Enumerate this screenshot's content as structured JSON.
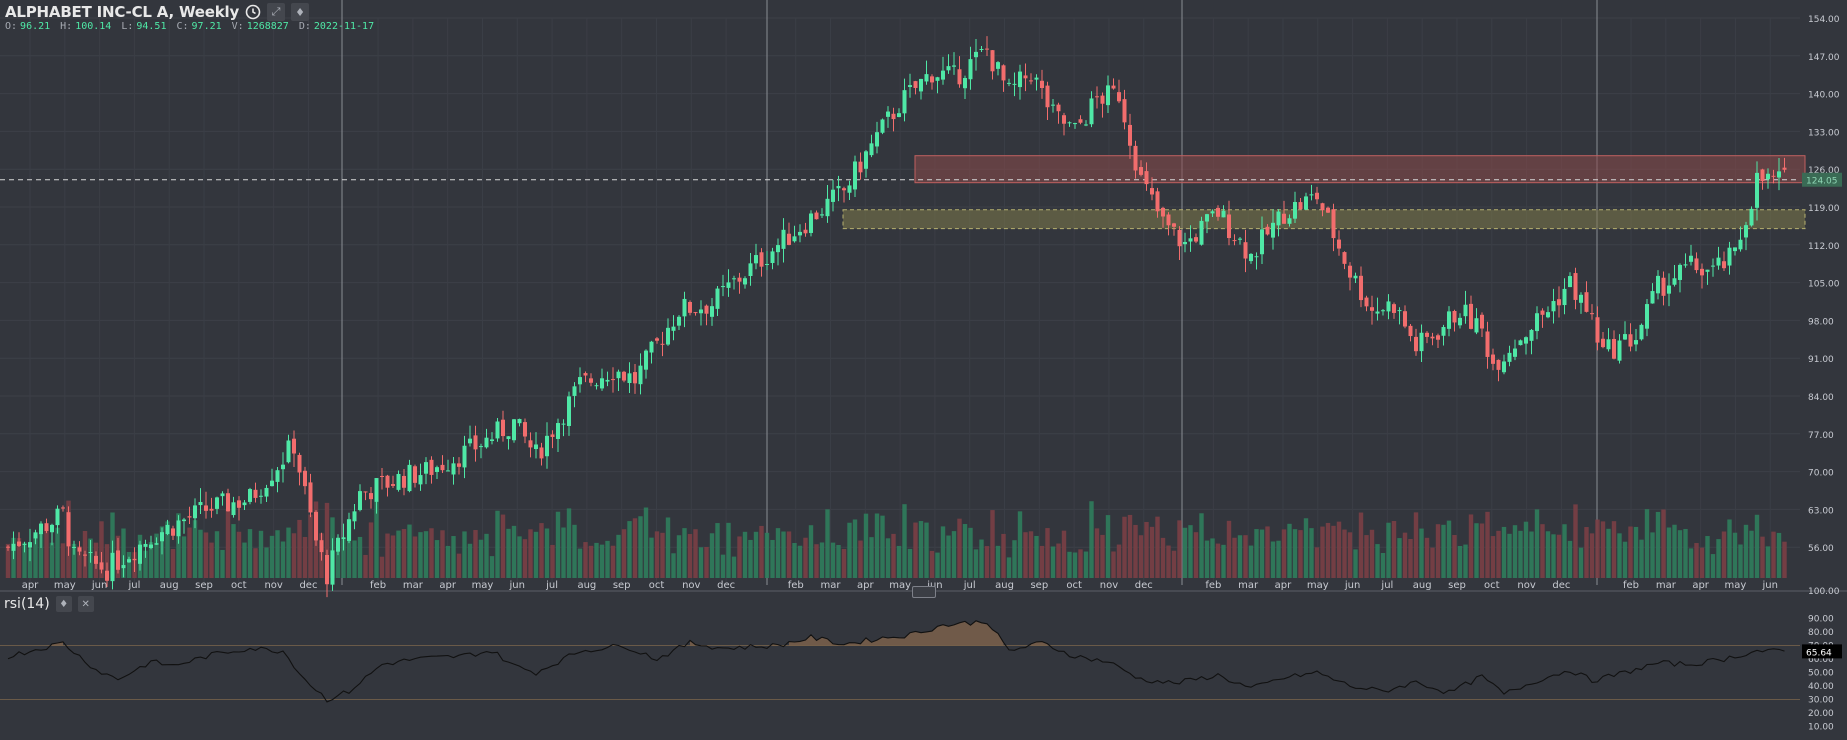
{
  "header": {
    "symbol": "ALPHABET INC-CL A, Weekly",
    "icons": [
      "clock-icon",
      "expand-icon",
      "settings-icon"
    ]
  },
  "ohlc": {
    "o_label": "O:",
    "o": "96.21",
    "h_label": "H:",
    "h": "100.14",
    "l_label": "L:",
    "l": "94.51",
    "c_label": "C:",
    "c": "97.21",
    "v_label": "V:",
    "v": "1268827",
    "d_label": "D:",
    "d": "2022-11-17"
  },
  "rsi": {
    "label": "rsi(14)",
    "value": "65.64",
    "icons": [
      "settings-icon",
      "close-icon"
    ]
  },
  "colors": {
    "background": "#33363d",
    "up": "#4fe8a6",
    "down": "#f26d6d",
    "resistance_zone": "#8a4a4a",
    "support_zone": "#7d7a4a",
    "rsi_line": "#111111",
    "rsi_fill": "#8a6a4f"
  },
  "chart_data": [
    {
      "type": "candlestick",
      "title": "",
      "interval": "Weekly",
      "ylim": [
        49,
        154
      ],
      "price_axis_ticks": [
        "154.00",
        "147.00",
        "140.00",
        "133.00",
        "126.00",
        "119.00",
        "112.00",
        "105.00",
        "98.00",
        "91.00",
        "84.00",
        "77.00",
        "70.00",
        "63.00",
        "56.00",
        "100.00"
      ],
      "last_price_label": "124.05",
      "x_month_labels": [
        "apr",
        "may",
        "jun",
        "jul",
        "aug",
        "sep",
        "oct",
        "nov",
        "dec",
        "feb",
        "mar",
        "apr",
        "may",
        "jun",
        "jul",
        "aug",
        "sep",
        "oct",
        "nov",
        "dec",
        "feb",
        "mar",
        "apr",
        "may",
        "jun",
        "jul",
        "aug",
        "sep",
        "oct",
        "nov",
        "dec",
        "feb",
        "mar",
        "apr",
        "may",
        "jun",
        "jul",
        "aug",
        "sep",
        "oct",
        "nov",
        "dec",
        "feb",
        "mar",
        "apr",
        "may",
        "jun"
      ],
      "close_anchors": [
        [
          0,
          56
        ],
        [
          10,
          62
        ],
        [
          12,
          54
        ],
        [
          18,
          52
        ],
        [
          26,
          58
        ],
        [
          36,
          63
        ],
        [
          44,
          65
        ],
        [
          48,
          70
        ],
        [
          52,
          75
        ],
        [
          56,
          57
        ],
        [
          58,
          51
        ],
        [
          64,
          66
        ],
        [
          72,
          69
        ],
        [
          76,
          70
        ],
        [
          84,
          74
        ],
        [
          92,
          79
        ],
        [
          96,
          73
        ],
        [
          104,
          86
        ],
        [
          110,
          89
        ],
        [
          114,
          87
        ],
        [
          122,
          100
        ],
        [
          128,
          101
        ],
        [
          132,
          105
        ],
        [
          140,
          112
        ],
        [
          146,
          117
        ],
        [
          152,
          122
        ],
        [
          158,
          132
        ],
        [
          162,
          138
        ],
        [
          168,
          144
        ],
        [
          172,
          143
        ],
        [
          178,
          148
        ],
        [
          182,
          140
        ],
        [
          186,
          144
        ],
        [
          190,
          136
        ],
        [
          194,
          133
        ],
        [
          198,
          139
        ],
        [
          202,
          140
        ],
        [
          206,
          124
        ],
        [
          210,
          116
        ],
        [
          214,
          112
        ],
        [
          220,
          118
        ],
        [
          226,
          110
        ],
        [
          232,
          118
        ],
        [
          238,
          121
        ],
        [
          244,
          107
        ],
        [
          248,
          100
        ],
        [
          252,
          101
        ],
        [
          256,
          93
        ],
        [
          260,
          96
        ],
        [
          264,
          100
        ],
        [
          268,
          96
        ],
        [
          270,
          90
        ],
        [
          274,
          94
        ],
        [
          280,
          100
        ],
        [
          284,
          105
        ],
        [
          288,
          98
        ],
        [
          290,
          92
        ],
        [
          296,
          95
        ],
        [
          300,
          104
        ],
        [
          306,
          108
        ],
        [
          310,
          107
        ],
        [
          314,
          110
        ],
        [
          318,
          124
        ],
        [
          322,
          124
        ]
      ],
      "volume_unit": "relative",
      "horizontal_zones": [
        {
          "name": "resistance",
          "from": 123.5,
          "to": 128.5
        },
        {
          "name": "support",
          "from": 115,
          "to": 118.5
        }
      ],
      "vertical_lines_at_month_index": [
        8,
        19,
        30,
        41
      ],
      "dashed_price_line": 124.05
    },
    {
      "type": "line",
      "title": "",
      "name": "rsi(14)",
      "ylim": [
        0,
        100
      ],
      "axis_ticks": [
        "90.00",
        "80.00",
        "70.00",
        "60.00",
        "50.00",
        "40.00",
        "30.00",
        "20.00",
        "10.00"
      ],
      "overbought": 70,
      "oversold": 30,
      "anchors": [
        [
          0,
          62
        ],
        [
          10,
          72
        ],
        [
          16,
          52
        ],
        [
          20,
          45
        ],
        [
          26,
          58
        ],
        [
          30,
          55
        ],
        [
          38,
          64
        ],
        [
          44,
          68
        ],
        [
          50,
          66
        ],
        [
          54,
          45
        ],
        [
          58,
          30
        ],
        [
          62,
          36
        ],
        [
          68,
          56
        ],
        [
          74,
          60
        ],
        [
          82,
          62
        ],
        [
          88,
          66
        ],
        [
          92,
          55
        ],
        [
          96,
          50
        ],
        [
          104,
          66
        ],
        [
          112,
          70
        ],
        [
          118,
          60
        ],
        [
          124,
          72
        ],
        [
          130,
          68
        ],
        [
          140,
          70
        ],
        [
          146,
          76
        ],
        [
          152,
          71
        ],
        [
          158,
          75
        ],
        [
          164,
          78
        ],
        [
          170,
          85
        ],
        [
          178,
          88
        ],
        [
          182,
          66
        ],
        [
          188,
          72
        ],
        [
          194,
          62
        ],
        [
          200,
          58
        ],
        [
          206,
          45
        ],
        [
          212,
          42
        ],
        [
          220,
          48
        ],
        [
          226,
          38
        ],
        [
          232,
          46
        ],
        [
          238,
          50
        ],
        [
          244,
          40
        ],
        [
          250,
          36
        ],
        [
          256,
          43
        ],
        [
          262,
          35
        ],
        [
          268,
          47
        ],
        [
          272,
          34
        ],
        [
          278,
          44
        ],
        [
          284,
          52
        ],
        [
          288,
          44
        ],
        [
          294,
          50
        ],
        [
          300,
          57
        ],
        [
          306,
          56
        ],
        [
          312,
          60
        ],
        [
          318,
          66
        ],
        [
          322,
          65.64
        ]
      ]
    }
  ]
}
